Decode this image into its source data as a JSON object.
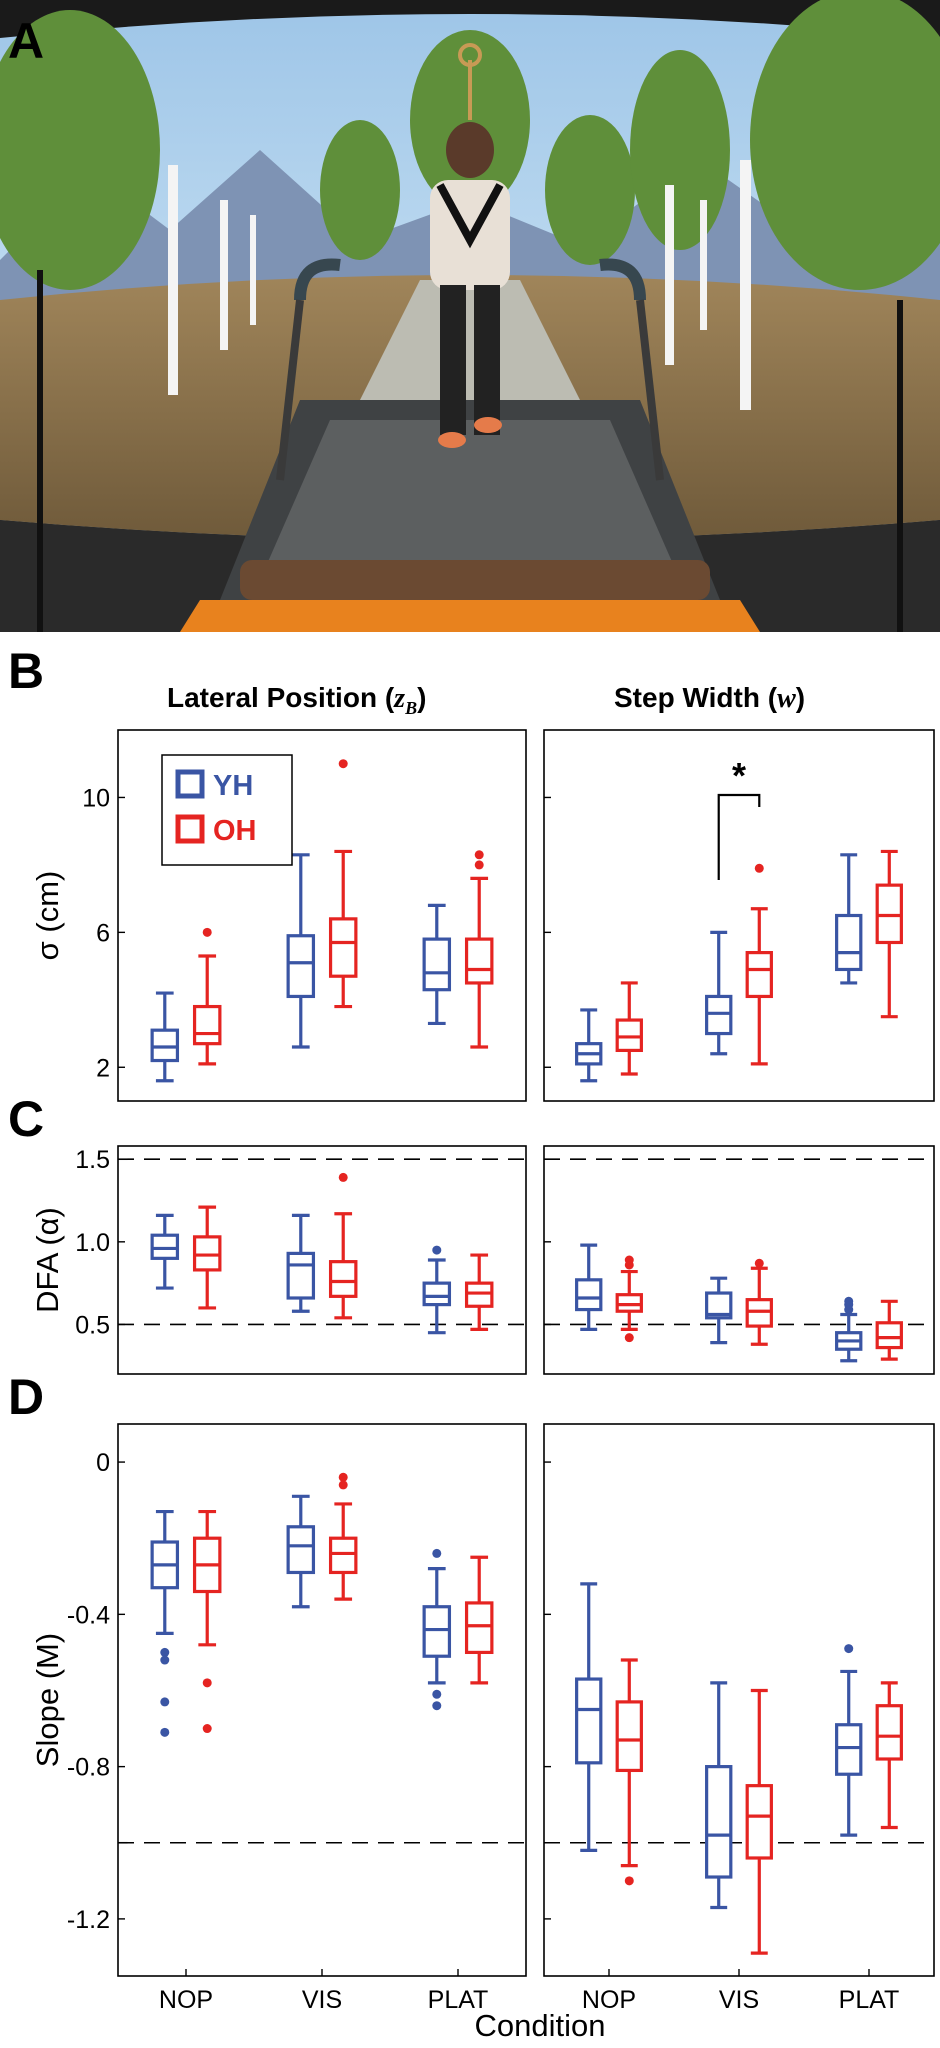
{
  "panel_letters": [
    "A",
    "B",
    "C",
    "D"
  ],
  "columns": [
    {
      "title": "Lateral Position (",
      "var": "z",
      "sub": "B",
      "end": ")"
    },
    {
      "title": "Step Width (",
      "var": "w",
      "sub": "",
      "end": ")"
    }
  ],
  "x_axis_title": "Condition",
  "categories": [
    "NOP",
    "VIS",
    "PLAT"
  ],
  "colors": {
    "YH": "#3a55a4",
    "OH": "#e52421"
  },
  "legend": [
    "YH",
    "OH"
  ],
  "photo": {
    "description_icon": "treadmill-vr-scene"
  },
  "chart_data": [
    {
      "type": "box",
      "panel": "B",
      "ylabel": "σ (cm)",
      "ylim": [
        1,
        12
      ],
      "yticks": [
        "2",
        "6",
        "10"
      ],
      "yticks_values": [
        2,
        6,
        10
      ],
      "reference_lines": [],
      "columns": [
        {
          "column": "Lateral Position (zB)",
          "groups": [
            {
              "condition": "NOP",
              "series": "YH",
              "min": 1.6,
              "q1": 2.2,
              "median": 2.6,
              "q3": 3.1,
              "max": 4.2,
              "outliers": []
            },
            {
              "condition": "NOP",
              "series": "OH",
              "min": 2.1,
              "q1": 2.7,
              "median": 3.0,
              "q3": 3.8,
              "max": 5.3,
              "outliers": [
                6.0
              ]
            },
            {
              "condition": "VIS",
              "series": "YH",
              "min": 2.6,
              "q1": 4.1,
              "median": 5.1,
              "q3": 5.9,
              "max": 8.3,
              "outliers": []
            },
            {
              "condition": "VIS",
              "series": "OH",
              "min": 3.8,
              "q1": 4.7,
              "median": 5.7,
              "q3": 6.4,
              "max": 8.4,
              "outliers": [
                11.0
              ]
            },
            {
              "condition": "PLAT",
              "series": "YH",
              "min": 3.3,
              "q1": 4.3,
              "median": 4.8,
              "q3": 5.8,
              "max": 6.8,
              "outliers": []
            },
            {
              "condition": "PLAT",
              "series": "OH",
              "min": 2.6,
              "q1": 4.5,
              "median": 4.9,
              "q3": 5.8,
              "max": 7.6,
              "outliers": [
                8.0,
                8.3
              ]
            }
          ]
        },
        {
          "column": "Step Width (w)",
          "annotation": "*",
          "groups": [
            {
              "condition": "NOP",
              "series": "YH",
              "min": 1.6,
              "q1": 2.1,
              "median": 2.4,
              "q3": 2.7,
              "max": 3.7,
              "outliers": []
            },
            {
              "condition": "NOP",
              "series": "OH",
              "min": 1.8,
              "q1": 2.5,
              "median": 2.9,
              "q3": 3.4,
              "max": 4.5,
              "outliers": []
            },
            {
              "condition": "VIS",
              "series": "YH",
              "min": 2.4,
              "q1": 3.0,
              "median": 3.6,
              "q3": 4.1,
              "max": 6.0,
              "outliers": []
            },
            {
              "condition": "VIS",
              "series": "OH",
              "min": 2.1,
              "q1": 4.1,
              "median": 4.9,
              "q3": 5.4,
              "max": 6.7,
              "outliers": [
                7.9
              ]
            },
            {
              "condition": "PLAT",
              "series": "YH",
              "min": 4.5,
              "q1": 4.9,
              "median": 5.4,
              "q3": 6.5,
              "max": 8.3,
              "outliers": []
            },
            {
              "condition": "PLAT",
              "series": "OH",
              "min": 3.5,
              "q1": 5.7,
              "median": 6.5,
              "q3": 7.4,
              "max": 8.4,
              "outliers": []
            }
          ]
        }
      ]
    },
    {
      "type": "box",
      "panel": "C",
      "ylabel": "DFA (α)",
      "ylim": [
        0.2,
        1.58
      ],
      "yticks": [
        "0.5",
        "1.0",
        "1.5"
      ],
      "yticks_values": [
        0.5,
        1.0,
        1.5
      ],
      "reference_lines": [
        0.5,
        1.5
      ],
      "columns": [
        {
          "column": "Lateral Position (zB)",
          "groups": [
            {
              "condition": "NOP",
              "series": "YH",
              "min": 0.72,
              "q1": 0.9,
              "median": 0.96,
              "q3": 1.04,
              "max": 1.16,
              "outliers": []
            },
            {
              "condition": "NOP",
              "series": "OH",
              "min": 0.6,
              "q1": 0.83,
              "median": 0.92,
              "q3": 1.03,
              "max": 1.21,
              "outliers": []
            },
            {
              "condition": "VIS",
              "series": "YH",
              "min": 0.58,
              "q1": 0.66,
              "median": 0.86,
              "q3": 0.93,
              "max": 1.16,
              "outliers": []
            },
            {
              "condition": "VIS",
              "series": "OH",
              "min": 0.54,
              "q1": 0.67,
              "median": 0.76,
              "q3": 0.88,
              "max": 1.17,
              "outliers": [
                1.39
              ]
            },
            {
              "condition": "PLAT",
              "series": "YH",
              "min": 0.45,
              "q1": 0.62,
              "median": 0.67,
              "q3": 0.75,
              "max": 0.89,
              "outliers": [
                0.95
              ]
            },
            {
              "condition": "PLAT",
              "series": "OH",
              "min": 0.47,
              "q1": 0.61,
              "median": 0.69,
              "q3": 0.75,
              "max": 0.92,
              "outliers": []
            }
          ]
        },
        {
          "column": "Step Width (w)",
          "groups": [
            {
              "condition": "NOP",
              "series": "YH",
              "min": 0.47,
              "q1": 0.59,
              "median": 0.66,
              "q3": 0.77,
              "max": 0.98,
              "outliers": []
            },
            {
              "condition": "NOP",
              "series": "OH",
              "min": 0.47,
              "q1": 0.58,
              "median": 0.62,
              "q3": 0.68,
              "max": 0.82,
              "outliers": [
                0.42,
                0.86,
                0.89
              ]
            },
            {
              "condition": "VIS",
              "series": "YH",
              "min": 0.39,
              "q1": 0.54,
              "median": 0.56,
              "q3": 0.69,
              "max": 0.78,
              "outliers": []
            },
            {
              "condition": "VIS",
              "series": "OH",
              "min": 0.38,
              "q1": 0.49,
              "median": 0.58,
              "q3": 0.65,
              "max": 0.84,
              "outliers": [
                0.87
              ]
            },
            {
              "condition": "PLAT",
              "series": "YH",
              "min": 0.28,
              "q1": 0.35,
              "median": 0.4,
              "q3": 0.45,
              "max": 0.56,
              "outliers": [
                0.59,
                0.62,
                0.64
              ]
            },
            {
              "condition": "PLAT",
              "series": "OH",
              "min": 0.29,
              "q1": 0.36,
              "median": 0.42,
              "q3": 0.51,
              "max": 0.64,
              "outliers": []
            }
          ]
        }
      ]
    },
    {
      "type": "box",
      "panel": "D",
      "ylabel": "Slope (M)",
      "ylim": [
        -1.35,
        0.1
      ],
      "yticks": [
        "0",
        "-0.4",
        "-0.8",
        "-1.2"
      ],
      "yticks_values": [
        0,
        -0.4,
        -0.8,
        -1.2
      ],
      "reference_lines": [
        -1.0
      ],
      "columns": [
        {
          "column": "Lateral Position (zB)",
          "groups": [
            {
              "condition": "NOP",
              "series": "YH",
              "min": -0.45,
              "q1": -0.33,
              "median": -0.27,
              "q3": -0.21,
              "max": -0.13,
              "outliers": [
                -0.5,
                -0.52,
                -0.63,
                -0.71
              ]
            },
            {
              "condition": "NOP",
              "series": "OH",
              "min": -0.48,
              "q1": -0.34,
              "median": -0.27,
              "q3": -0.2,
              "max": -0.13,
              "outliers": [
                -0.58,
                -0.7
              ]
            },
            {
              "condition": "VIS",
              "series": "YH",
              "min": -0.38,
              "q1": -0.29,
              "median": -0.22,
              "q3": -0.17,
              "max": -0.09,
              "outliers": []
            },
            {
              "condition": "VIS",
              "series": "OH",
              "min": -0.36,
              "q1": -0.29,
              "median": -0.24,
              "q3": -0.2,
              "max": -0.11,
              "outliers": [
                -0.04,
                -0.06
              ]
            },
            {
              "condition": "PLAT",
              "series": "YH",
              "min": -0.58,
              "q1": -0.51,
              "median": -0.44,
              "q3": -0.38,
              "max": -0.28,
              "outliers": [
                -0.24,
                -0.61,
                -0.64
              ]
            },
            {
              "condition": "PLAT",
              "series": "OH",
              "min": -0.58,
              "q1": -0.5,
              "median": -0.43,
              "q3": -0.37,
              "max": -0.25,
              "outliers": []
            }
          ]
        },
        {
          "column": "Step Width (w)",
          "groups": [
            {
              "condition": "NOP",
              "series": "YH",
              "min": -1.02,
              "q1": -0.79,
              "median": -0.65,
              "q3": -0.57,
              "max": -0.32,
              "outliers": []
            },
            {
              "condition": "NOP",
              "series": "OH",
              "min": -1.06,
              "q1": -0.81,
              "median": -0.73,
              "q3": -0.63,
              "max": -0.52,
              "outliers": [
                -1.1
              ]
            },
            {
              "condition": "VIS",
              "series": "YH",
              "min": -1.17,
              "q1": -1.09,
              "median": -0.98,
              "q3": -0.8,
              "max": -0.58,
              "outliers": []
            },
            {
              "condition": "VIS",
              "series": "OH",
              "min": -1.29,
              "q1": -1.04,
              "median": -0.93,
              "q3": -0.85,
              "max": -0.6,
              "outliers": []
            },
            {
              "condition": "PLAT",
              "series": "YH",
              "min": -0.98,
              "q1": -0.82,
              "median": -0.75,
              "q3": -0.69,
              "max": -0.55,
              "outliers": [
                -0.49
              ]
            },
            {
              "condition": "PLAT",
              "series": "OH",
              "min": -0.96,
              "q1": -0.78,
              "median": -0.72,
              "q3": -0.64,
              "max": -0.58,
              "outliers": []
            }
          ]
        }
      ]
    }
  ]
}
